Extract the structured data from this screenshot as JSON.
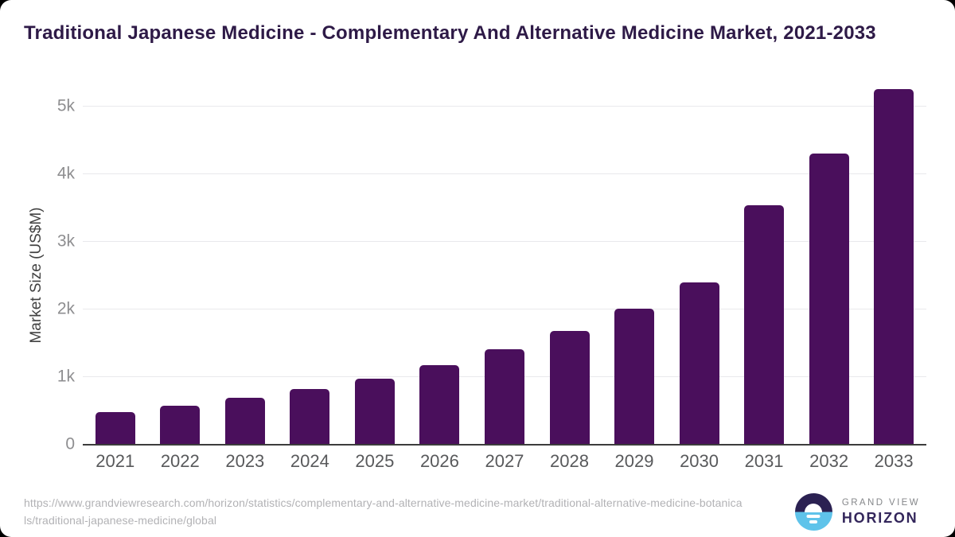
{
  "title": "Traditional Japanese Medicine - Complementary And Alternative Medicine Market, 2021-2033",
  "chart_data": {
    "type": "bar",
    "title": "Traditional Japanese Medicine - Complementary And Alternative Medicine Market, 2021-2033",
    "categories": [
      "2021",
      "2022",
      "2023",
      "2024",
      "2025",
      "2026",
      "2027",
      "2028",
      "2029",
      "2030",
      "2031",
      "2032",
      "2033"
    ],
    "values": [
      470,
      565,
      680,
      810,
      965,
      1160,
      1400,
      1670,
      2000,
      2390,
      3530,
      4300,
      5250
    ],
    "xlabel": "",
    "ylabel": "Market Size (US$M)",
    "ylim": [
      0,
      5000
    ],
    "yticks": [
      {
        "value": 0,
        "label": "0"
      },
      {
        "value": 1000,
        "label": "1k"
      },
      {
        "value": 2000,
        "label": "2k"
      },
      {
        "value": 3000,
        "label": "3k"
      },
      {
        "value": 4000,
        "label": "4k"
      },
      {
        "value": 5000,
        "label": "5k"
      }
    ],
    "grid": true,
    "legend": false,
    "bar_color": "#4A0F5C"
  },
  "footer": {
    "source_url": "https://www.grandviewresearch.com/horizon/statistics/complementary-and-alternative-medicine-market/traditional-alternative-medicine-botanicals/traditional-japanese-medicine/global",
    "logo": {
      "top": "GRAND VIEW",
      "bottom": "HORIZON"
    }
  },
  "colors": {
    "bar": "#4A0F5C",
    "title_text": "#2E1A47",
    "logo_navy": "#2B2152",
    "logo_blue": "#5FC3EA",
    "horizon_text": "#33265B"
  }
}
